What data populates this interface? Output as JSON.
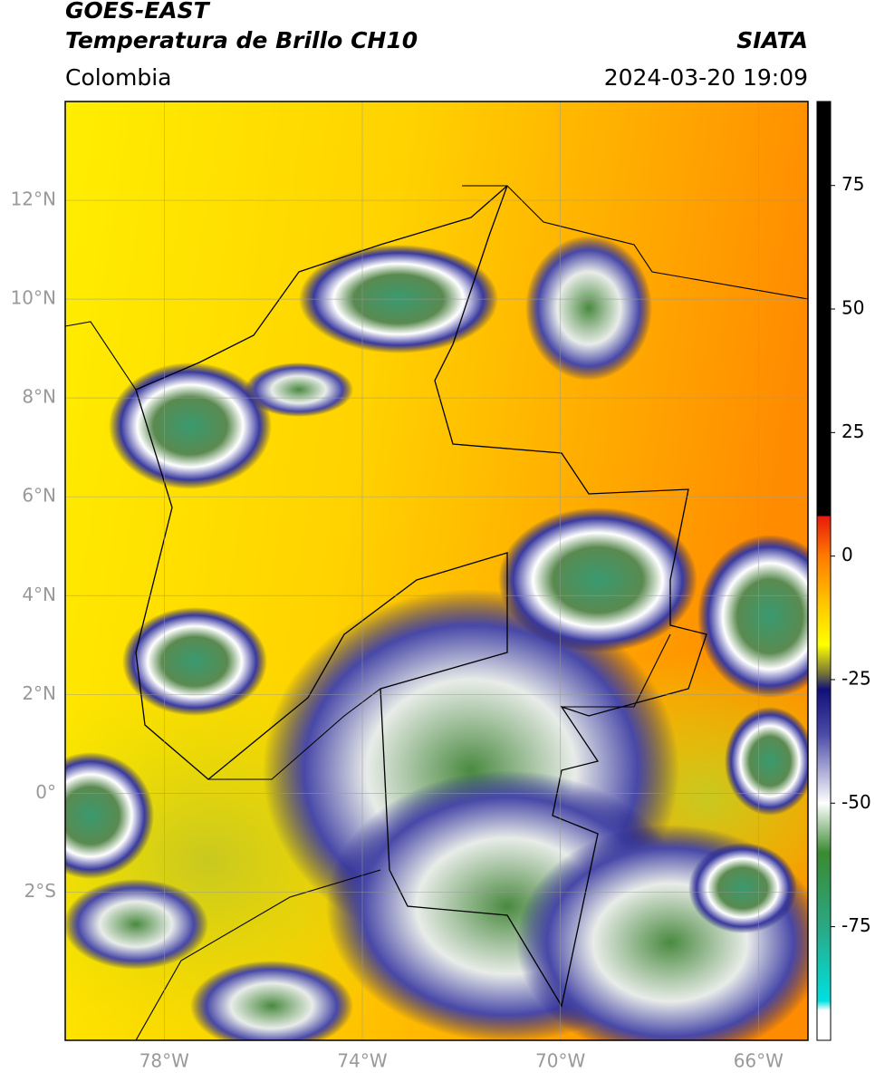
{
  "header": {
    "title": "GOES-EAST",
    "subtitle": "Temperatura de Brillo CH10",
    "region": "Colombia",
    "source": "SIATA",
    "datetime": "2024-03-20 19:09"
  },
  "map": {
    "type": "map",
    "xlim": [
      -80,
      -65
    ],
    "ylim": [
      -5,
      14
    ],
    "grid": true,
    "xticks": [
      {
        "value": -78,
        "label": "78°W"
      },
      {
        "value": -74,
        "label": "74°W"
      },
      {
        "value": -70,
        "label": "70°W"
      },
      {
        "value": -66,
        "label": "66°W"
      }
    ],
    "yticks": [
      {
        "value": 12,
        "label": "12°N"
      },
      {
        "value": 10,
        "label": "10°N"
      },
      {
        "value": 8,
        "label": "8°N"
      },
      {
        "value": 6,
        "label": "6°N"
      },
      {
        "value": 4,
        "label": "4°N"
      },
      {
        "value": 2,
        "label": "2°N"
      },
      {
        "value": 0,
        "label": "0°"
      },
      {
        "value": -2,
        "label": "2°S"
      }
    ]
  },
  "colorbar": {
    "lim": [
      -98,
      92
    ],
    "ticks": [
      75,
      50,
      25,
      0,
      -25,
      -50,
      -75
    ],
    "stops": [
      {
        "value": 92,
        "color": "#000000"
      },
      {
        "value": 8.2,
        "color": "#000000"
      },
      {
        "value": 8,
        "color": "#e81a0c"
      },
      {
        "value": 0,
        "color": "#ff7a00"
      },
      {
        "value": -10,
        "color": "#ffc800"
      },
      {
        "value": -18,
        "color": "#ffff00"
      },
      {
        "value": -24,
        "color": "#6e6e3a"
      },
      {
        "value": -27,
        "color": "#10107a"
      },
      {
        "value": -36,
        "color": "#4a4aa8"
      },
      {
        "value": -50,
        "color": "#ffffff"
      },
      {
        "value": -60,
        "color": "#3a8a30"
      },
      {
        "value": -75,
        "color": "#2aa884"
      },
      {
        "value": -90,
        "color": "#00e0e0"
      },
      {
        "value": -92,
        "color": "#ffffff"
      },
      {
        "value": -98,
        "color": "#ffffff"
      }
    ]
  }
}
